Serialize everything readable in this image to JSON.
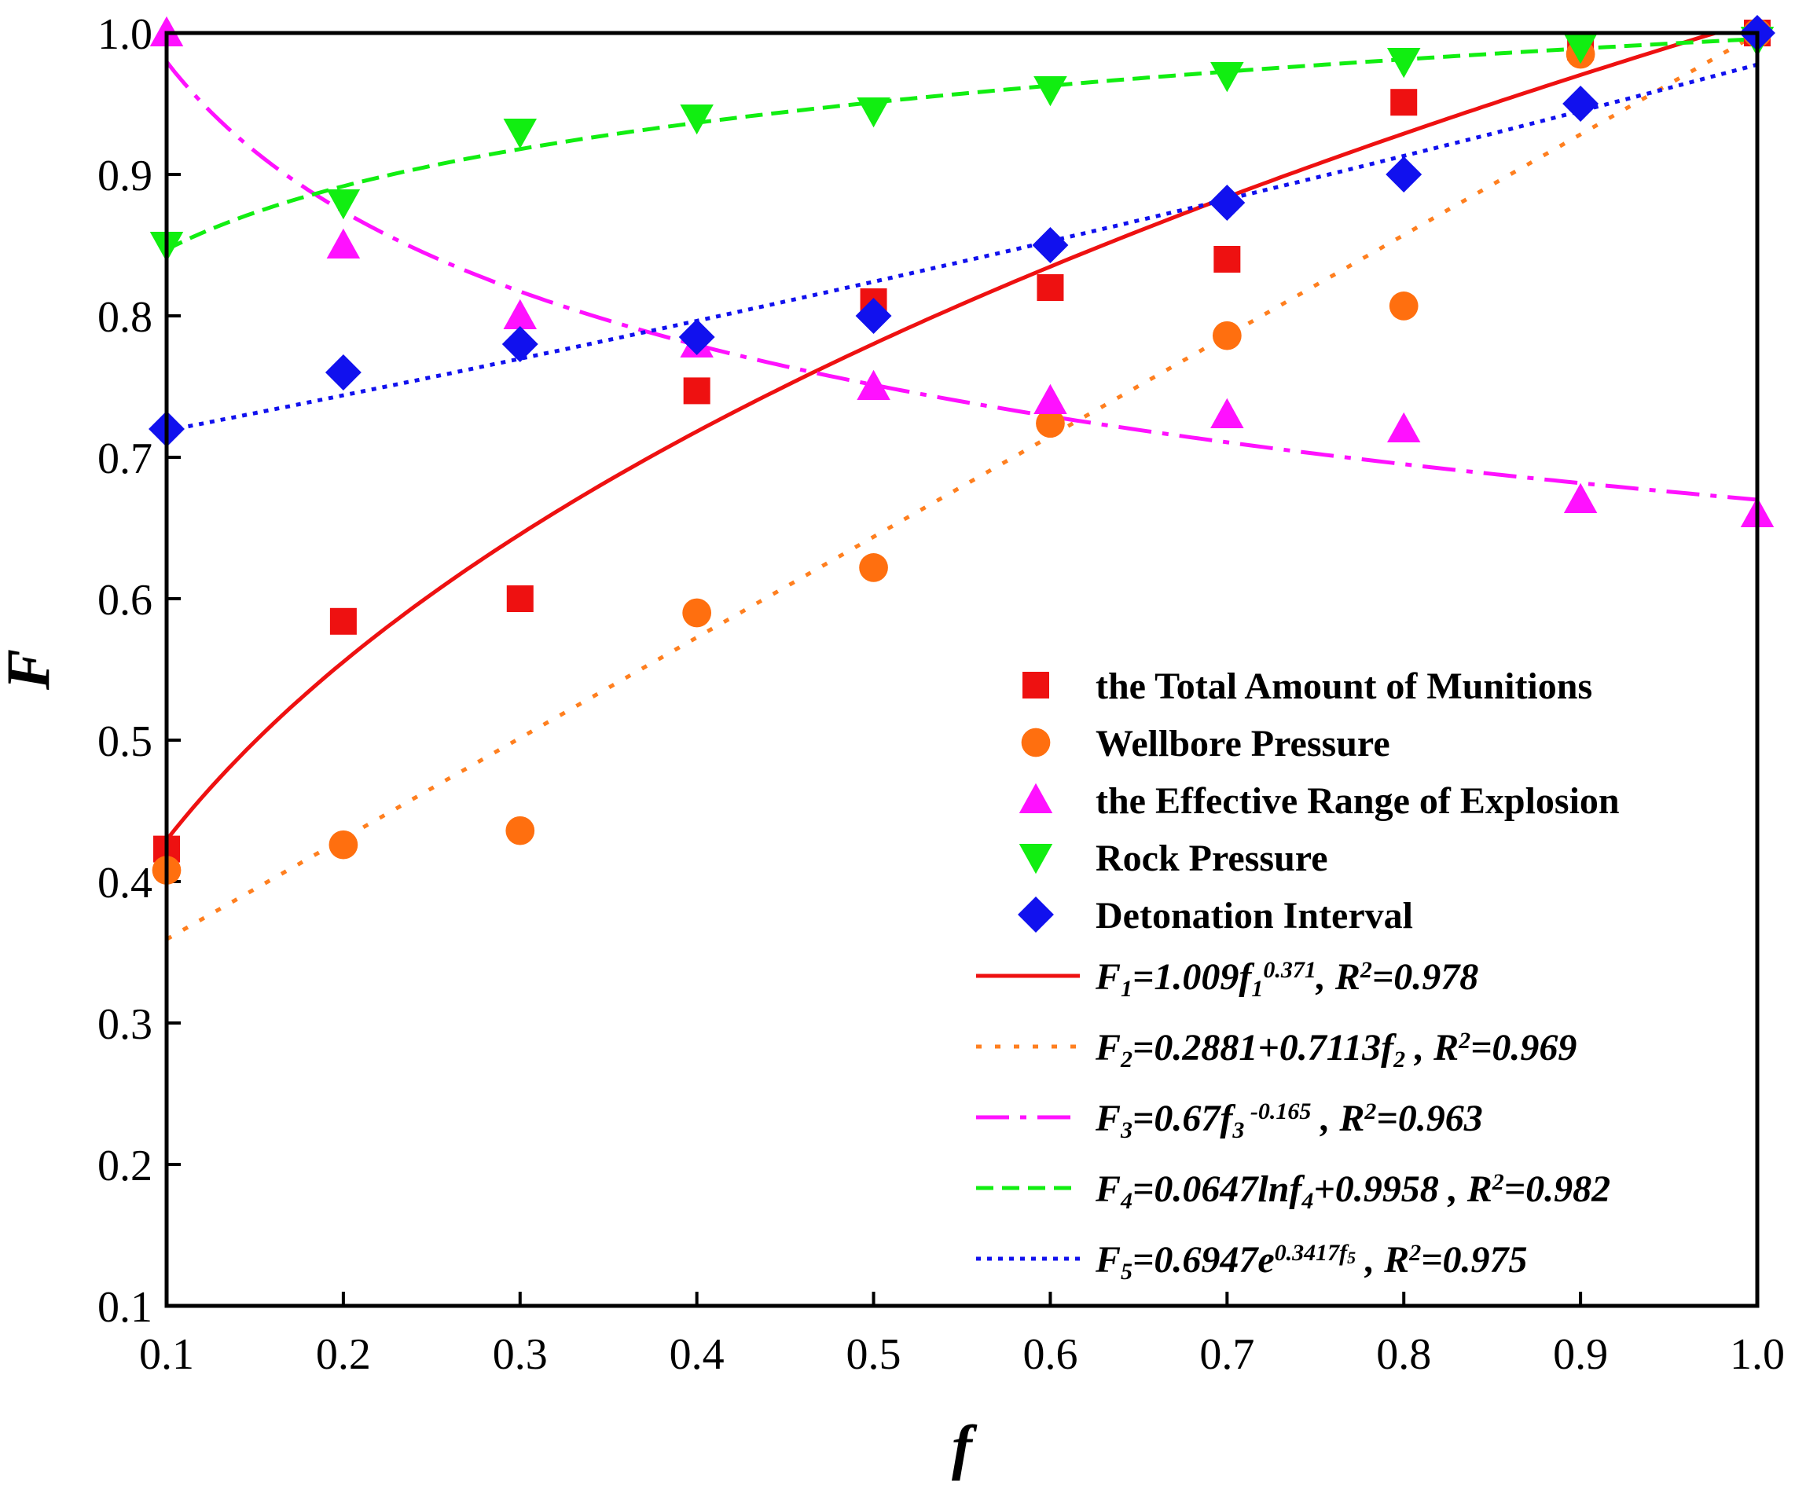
{
  "chart_data": {
    "type": "scatter",
    "xlabel": "f",
    "ylabel": "F",
    "xlim": [
      0.1,
      1.0
    ],
    "ylim": [
      0.1,
      1.0
    ],
    "xticks": [
      "0.1",
      "0.2",
      "0.3",
      "0.4",
      "0.5",
      "0.6",
      "0.7",
      "0.8",
      "0.9",
      "1.0"
    ],
    "yticks": [
      "0.1",
      "0.2",
      "0.3",
      "0.4",
      "0.5",
      "0.6",
      "0.7",
      "0.8",
      "0.9",
      "1.0"
    ],
    "legend_position": "bottom-right",
    "series": [
      {
        "name": "the Total Amount of Munitions",
        "marker": "square",
        "color": "#ee1111",
        "x": [
          0.1,
          0.2,
          0.3,
          0.4,
          0.5,
          0.6,
          0.7,
          0.8,
          0.9,
          1.0
        ],
        "y": [
          0.423,
          0.584,
          0.6,
          0.747,
          0.81,
          0.82,
          0.84,
          0.951,
          0.99,
          1.0
        ]
      },
      {
        "name": "Wellbore Pressure",
        "marker": "circle",
        "color": "#ff6f0f",
        "x": [
          0.1,
          0.2,
          0.3,
          0.4,
          0.5,
          0.6,
          0.7,
          0.8,
          0.9,
          1.0
        ],
        "y": [
          0.408,
          0.426,
          0.436,
          0.59,
          0.622,
          0.724,
          0.786,
          0.807,
          0.985,
          1.0
        ]
      },
      {
        "name": "the Effective Range of Explosion",
        "marker": "triangle-up",
        "color": "#ff11ff",
        "x": [
          0.1,
          0.2,
          0.3,
          0.4,
          0.5,
          0.6,
          0.7,
          0.8,
          0.9,
          1.0
        ],
        "y": [
          1.0,
          0.85,
          0.8,
          0.78,
          0.75,
          0.74,
          0.73,
          0.72,
          0.67,
          0.66
        ]
      },
      {
        "name": "Rock Pressure",
        "marker": "triangle-down",
        "color": "#11ee11",
        "x": [
          0.1,
          0.2,
          0.3,
          0.4,
          0.5,
          0.6,
          0.7,
          0.8,
          0.9,
          1.0
        ],
        "y": [
          0.85,
          0.88,
          0.93,
          0.94,
          0.945,
          0.96,
          0.97,
          0.98,
          0.99,
          0.995
        ]
      },
      {
        "name": "Detonation Interval",
        "marker": "diamond",
        "color": "#1111ee",
        "x": [
          0.1,
          0.2,
          0.3,
          0.4,
          0.5,
          0.6,
          0.7,
          0.8,
          0.9,
          1.0
        ],
        "y": [
          0.72,
          0.76,
          0.78,
          0.785,
          0.8,
          0.85,
          0.88,
          0.9,
          0.95,
          1.0
        ]
      }
    ],
    "fits": [
      {
        "id": "f1",
        "model": "power",
        "a": 1.009,
        "b": 0.371,
        "color": "#ee1111",
        "dash": "solid",
        "label_parts": [
          {
            "text": "F",
            "sup": false,
            "sub": false
          },
          {
            "text": "1",
            "sub": true
          },
          {
            "text": "=1.009f",
            "sub": false
          },
          {
            "text": "1",
            "sub": true
          },
          {
            "text": "0.371",
            "sup": true
          },
          {
            "text": ", R",
            "sub": false
          },
          {
            "text": "2",
            "sup": true
          },
          {
            "text": "=0.978",
            "sub": false
          }
        ]
      },
      {
        "id": "f2",
        "model": "linear",
        "a": 0.2881,
        "b": 0.7113,
        "color": "#ff7f1f",
        "dash": "dot-sparse",
        "label_parts": [
          {
            "text": "F"
          },
          {
            "text": "2",
            "sub": true
          },
          {
            "text": "=0.2881+0.7113f"
          },
          {
            "text": "2",
            "sub": true
          },
          {
            "text": " , R"
          },
          {
            "text": "2",
            "sup": true
          },
          {
            "text": "=0.969"
          }
        ]
      },
      {
        "id": "f3",
        "model": "power",
        "a": 0.67,
        "b": -0.165,
        "color": "#ff11ff",
        "dash": "dash-dot",
        "label_parts": [
          {
            "text": "F"
          },
          {
            "text": "3",
            "sub": true
          },
          {
            "text": "=0.67f"
          },
          {
            "text": "3",
            "sub": true
          },
          {
            "text": " -0.165",
            "sup": true
          },
          {
            "text": " , R"
          },
          {
            "text": "2",
            "sup": true
          },
          {
            "text": "=0.963"
          }
        ]
      },
      {
        "id": "f4",
        "model": "log",
        "a": 0.0647,
        "b": 0.9958,
        "color": "#11ee11",
        "dash": "dash",
        "label_parts": [
          {
            "text": "F"
          },
          {
            "text": "4",
            "sub": true
          },
          {
            "text": "=0.0647lnf"
          },
          {
            "text": "4",
            "sub": true
          },
          {
            "text": "+0.9958 , R"
          },
          {
            "text": "2",
            "sup": true
          },
          {
            "text": "=0.982"
          }
        ]
      },
      {
        "id": "f5",
        "model": "exp",
        "a": 0.6947,
        "b": 0.3417,
        "color": "#1111ee",
        "dash": "dot-dense",
        "label_parts": [
          {
            "text": "F"
          },
          {
            "text": "5",
            "sub": true
          },
          {
            "text": "=0.6947e"
          },
          {
            "text": "0.3417f",
            "sup": true
          },
          {
            "text": "5",
            "sup": true,
            "small": true
          },
          {
            "text": " , R"
          },
          {
            "text": "2",
            "sup": true
          },
          {
            "text": "=0.975"
          }
        ]
      }
    ]
  }
}
